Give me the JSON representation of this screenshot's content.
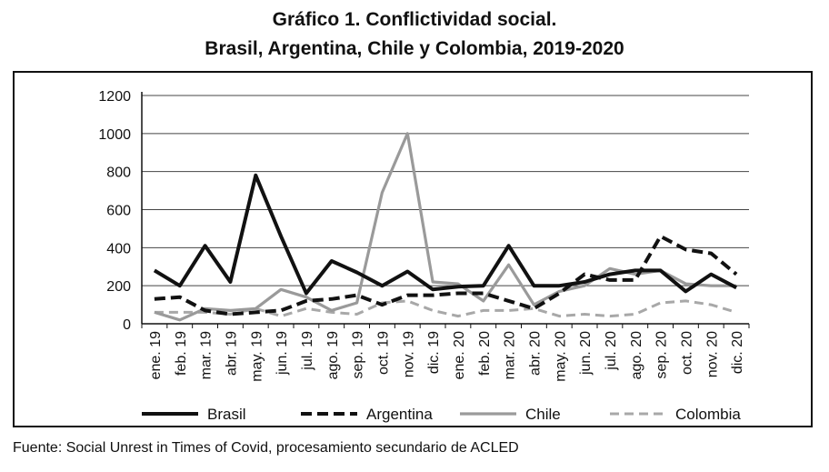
{
  "chart_data": {
    "type": "line",
    "title": "Gráfico 1. Conflictividad social.",
    "subtitle": "Brasil, Argentina, Chile y Colombia, 2019-2020",
    "xlabel": "",
    "ylabel": "",
    "ylim": [
      0,
      1200
    ],
    "yticks": [
      0,
      200,
      400,
      600,
      800,
      1000,
      1200
    ],
    "grid": true,
    "legend_position": "bottom",
    "categories": [
      "ene. 19",
      "feb. 19",
      "mar. 19",
      "abr. 19",
      "may. 19",
      "jun. 19",
      "jul. 19",
      "ago. 19",
      "sep. 19",
      "oct. 19",
      "nov. 19",
      "dic. 19",
      "ene. 20",
      "feb. 20",
      "mar. 20",
      "abr. 20",
      "may. 20",
      "jun. 20",
      "jul. 20",
      "ago. 20",
      "sep. 20",
      "oct. 20",
      "nov. 20",
      "dic. 20"
    ],
    "series": [
      {
        "name": "Brasil",
        "color": "#111111",
        "style": "solid-thick",
        "values": [
          280,
          200,
          410,
          220,
          780,
          460,
          160,
          330,
          270,
          200,
          275,
          180,
          195,
          200,
          410,
          200,
          200,
          220,
          260,
          280,
          280,
          170,
          260,
          190
        ]
      },
      {
        "name": "Argentina",
        "color": "#111111",
        "style": "dashed-thick",
        "values": [
          130,
          140,
          70,
          50,
          60,
          70,
          120,
          130,
          150,
          100,
          150,
          150,
          160,
          160,
          120,
          80,
          160,
          260,
          230,
          230,
          460,
          390,
          370,
          260
        ]
      },
      {
        "name": "Chile",
        "color": "#9a9a9a",
        "style": "solid-gray",
        "values": [
          60,
          20,
          80,
          70,
          80,
          180,
          140,
          70,
          110,
          690,
          1000,
          220,
          210,
          120,
          310,
          100,
          170,
          200,
          290,
          260,
          280,
          210,
          200,
          200
        ]
      },
      {
        "name": "Colombia",
        "color": "#9a9a9a",
        "style": "dashed-gray",
        "values": [
          60,
          60,
          60,
          50,
          80,
          40,
          80,
          60,
          50,
          110,
          120,
          70,
          40,
          70,
          70,
          80,
          40,
          50,
          40,
          50,
          110,
          120,
          100,
          60
        ]
      }
    ]
  },
  "footer": {
    "source": "Fuente: Social Unrest in Times of Covid, procesamiento secundario de ACLED"
  }
}
